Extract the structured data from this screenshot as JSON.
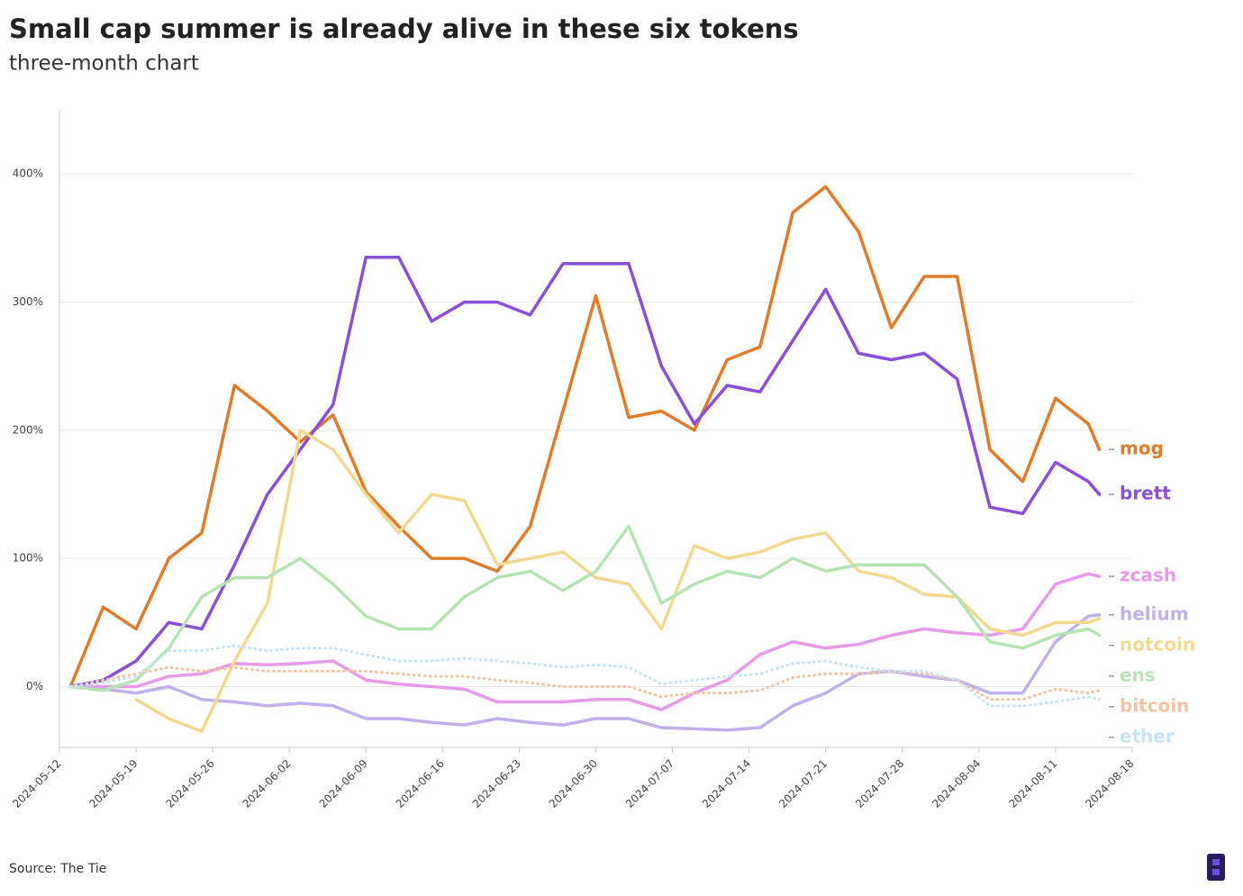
{
  "chart_data": {
    "type": "line",
    "title": "Small cap summer is already alive in these six tokens",
    "subtitle": "three-month chart",
    "source": "Source: The Tie",
    "x": [
      "2024-05-13",
      "2024-05-16",
      "2024-05-19",
      "2024-05-22",
      "2024-05-25",
      "2024-05-28",
      "2024-05-31",
      "2024-06-03",
      "2024-06-06",
      "2024-06-09",
      "2024-06-12",
      "2024-06-15",
      "2024-06-18",
      "2024-06-21",
      "2024-06-24",
      "2024-06-27",
      "2024-06-30",
      "2024-07-03",
      "2024-07-06",
      "2024-07-09",
      "2024-07-12",
      "2024-07-15",
      "2024-07-18",
      "2024-07-21",
      "2024-07-24",
      "2024-07-27",
      "2024-07-30",
      "2024-08-02",
      "2024-08-05",
      "2024-08-08",
      "2024-08-11",
      "2024-08-14",
      "2024-08-15"
    ],
    "series": [
      {
        "name": "mog",
        "color": "#e07b2a",
        "style": "solid",
        "values": [
          0,
          62,
          45,
          100,
          120,
          235,
          215,
          191,
          212,
          152,
          125,
          100,
          100,
          90,
          125,
          215,
          305,
          210,
          215,
          200,
          255,
          265,
          370,
          390,
          355,
          280,
          320,
          320,
          185,
          160,
          225,
          205,
          185
        ]
      },
      {
        "name": "brett",
        "color": "#8a4fd8",
        "style": "solid",
        "values": [
          0,
          5,
          20,
          50,
          45,
          95,
          150,
          185,
          220,
          335,
          335,
          285,
          300,
          300,
          290,
          330,
          330,
          330,
          250,
          205,
          235,
          230,
          270,
          310,
          260,
          255,
          260,
          240,
          140,
          135,
          175,
          160,
          150
        ]
      },
      {
        "name": "zcash",
        "color": "#e79ae8",
        "style": "solid",
        "values": [
          0,
          0,
          0,
          8,
          10,
          18,
          17,
          18,
          20,
          5,
          2,
          0,
          -2,
          -12,
          -12,
          -12,
          -10,
          -10,
          -18,
          -5,
          5,
          25,
          35,
          30,
          33,
          40,
          45,
          42,
          40,
          45,
          80,
          88,
          86
        ]
      },
      {
        "name": "helium",
        "color": "#c2b0ec",
        "style": "solid",
        "values": [
          0,
          -2,
          -5,
          0,
          -10,
          -12,
          -15,
          -13,
          -15,
          -25,
          -25,
          -28,
          -30,
          -25,
          -28,
          -30,
          -25,
          -25,
          -32,
          -33,
          -34,
          -32,
          -15,
          -5,
          10,
          12,
          8,
          5,
          -5,
          -5,
          35,
          55,
          56
        ]
      },
      {
        "name": "notcoin",
        "color": "#f2d98f",
        "style": "solid",
        "values": [
          null,
          null,
          -10,
          -25,
          -35,
          20,
          65,
          200,
          185,
          150,
          120,
          150,
          145,
          95,
          100,
          105,
          85,
          80,
          45,
          110,
          100,
          105,
          115,
          120,
          90,
          85,
          72,
          70,
          45,
          40,
          50,
          50,
          53
        ]
      },
      {
        "name": "ens",
        "color": "#b6e3b4",
        "style": "solid",
        "values": [
          0,
          -3,
          5,
          30,
          70,
          85,
          85,
          100,
          80,
          55,
          45,
          45,
          70,
          85,
          90,
          75,
          90,
          125,
          65,
          80,
          90,
          85,
          100,
          90,
          95,
          95,
          95,
          70,
          35,
          30,
          40,
          45,
          40
        ]
      },
      {
        "name": "bitcoin",
        "color": "#f2c4a4",
        "style": "dotted",
        "values": [
          0,
          5,
          10,
          15,
          12,
          15,
          12,
          12,
          12,
          12,
          10,
          8,
          8,
          5,
          3,
          0,
          0,
          0,
          -8,
          -5,
          -5,
          -3,
          7,
          10,
          10,
          12,
          10,
          5,
          -10,
          -10,
          -2,
          -5,
          -3
        ]
      },
      {
        "name": "ether",
        "color": "#c7e3f7",
        "style": "dotted",
        "values": [
          0,
          3,
          8,
          28,
          28,
          32,
          28,
          30,
          30,
          25,
          20,
          20,
          22,
          20,
          18,
          15,
          17,
          15,
          2,
          5,
          8,
          10,
          18,
          20,
          15,
          12,
          12,
          5,
          -15,
          -15,
          -12,
          -8,
          -10
        ]
      }
    ],
    "xlim": [
      "2024-05-12",
      "2024-08-18"
    ],
    "xticks": [
      "2024-05-12",
      "2024-05-19",
      "2024-05-26",
      "2024-06-02",
      "2024-06-09",
      "2024-06-16",
      "2024-06-23",
      "2024-06-30",
      "2024-07-07",
      "2024-07-14",
      "2024-07-21",
      "2024-07-28",
      "2024-08-04",
      "2024-08-11",
      "2024-08-18"
    ],
    "ylim": [
      -58,
      450
    ],
    "yticks": [
      {
        "value": 0,
        "label": "0%"
      },
      {
        "value": 100,
        "label": "100%"
      },
      {
        "value": 200,
        "label": "200%"
      },
      {
        "value": 300,
        "label": "300%"
      },
      {
        "value": 400,
        "label": "400%"
      }
    ],
    "grid": true
  }
}
